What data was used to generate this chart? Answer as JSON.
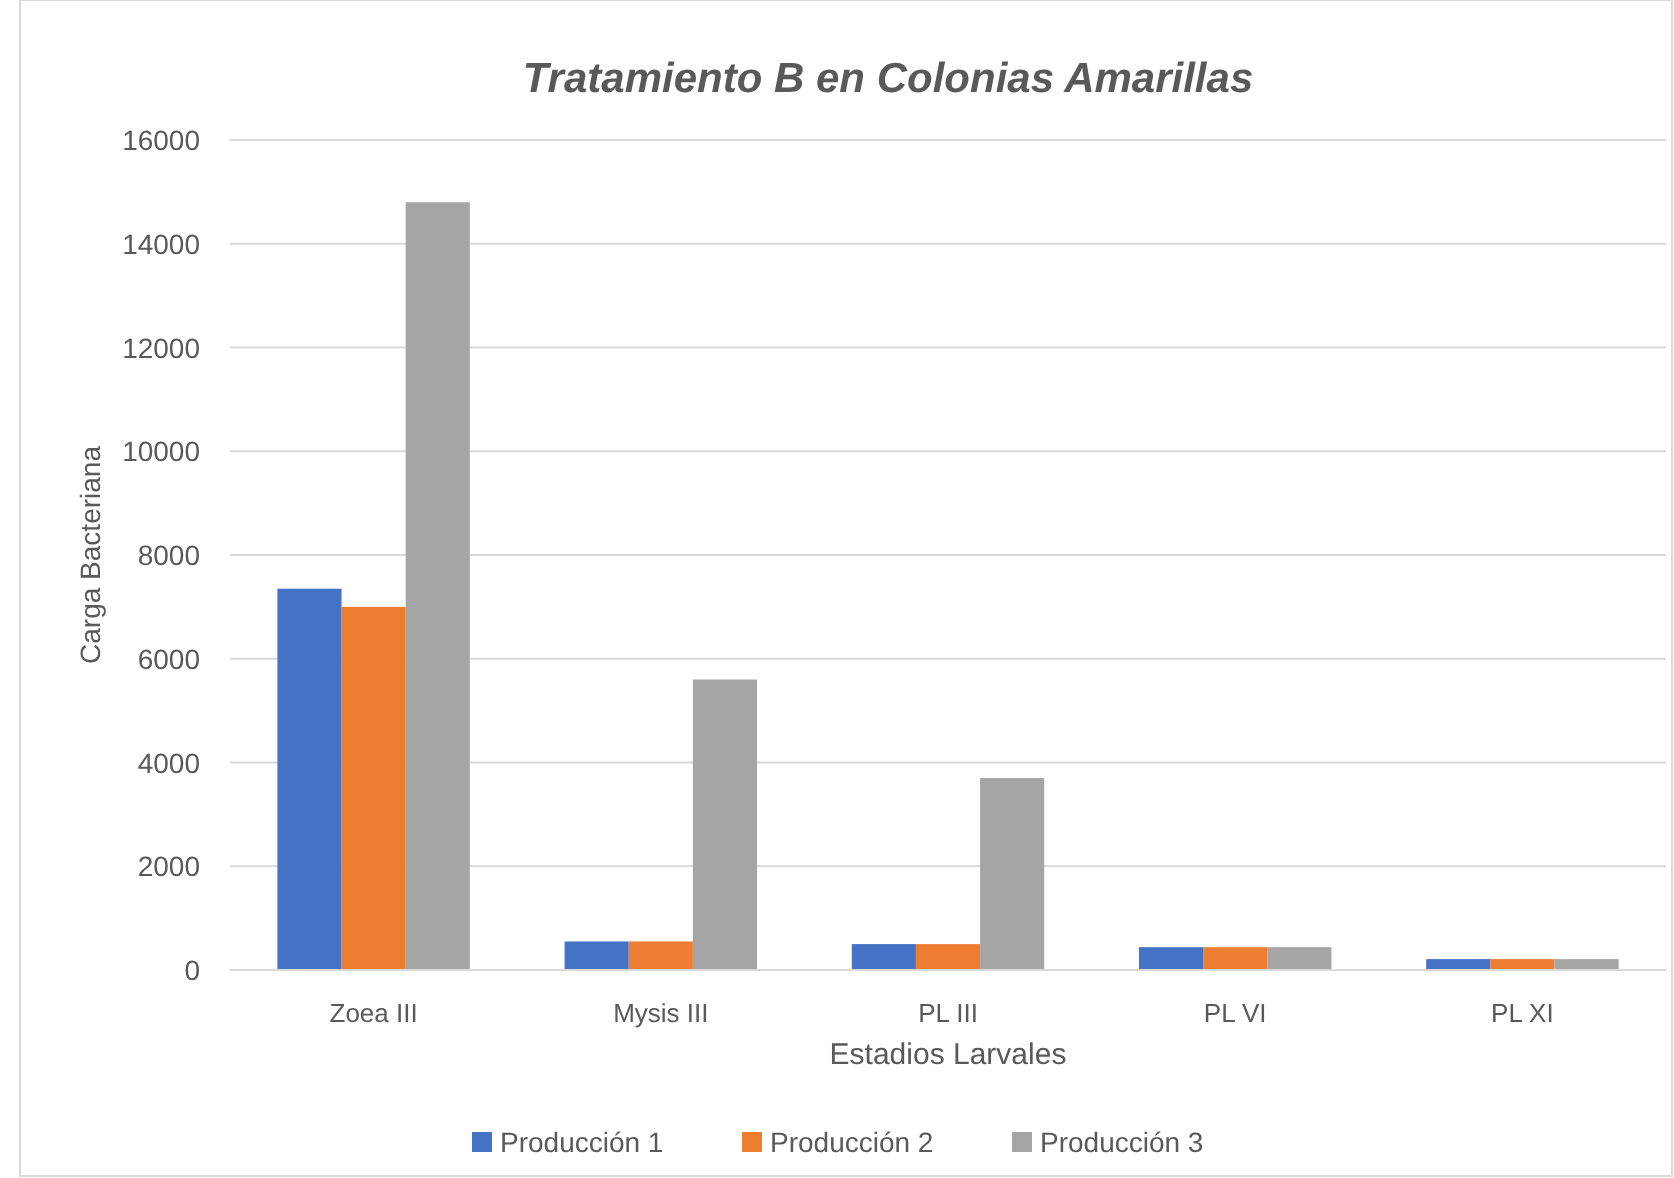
{
  "chart_data": {
    "type": "bar",
    "title": "Tratamiento B en Colonias Amarillas",
    "xlabel": "Estadios Larvales",
    "ylabel": "Carga Bacteriana",
    "categories": [
      "Zoea III",
      "Mysis III",
      "PL III",
      "PL VI",
      "PL XI"
    ],
    "series": [
      {
        "name": "Producción 1",
        "color": "#4472c4",
        "values": [
          7350,
          550,
          500,
          440,
          210
        ]
      },
      {
        "name": "Producción 2",
        "color": "#ed7d31",
        "values": [
          7000,
          550,
          500,
          440,
          210
        ]
      },
      {
        "name": "Producción 3",
        "color": "#a5a5a5",
        "values": [
          14800,
          5600,
          3700,
          440,
          210
        ]
      }
    ],
    "ylim": [
      0,
      16000
    ],
    "yticks": [
      0,
      2000,
      4000,
      6000,
      8000,
      10000,
      12000,
      14000,
      16000
    ],
    "grid": "y",
    "legend": "bottom"
  }
}
